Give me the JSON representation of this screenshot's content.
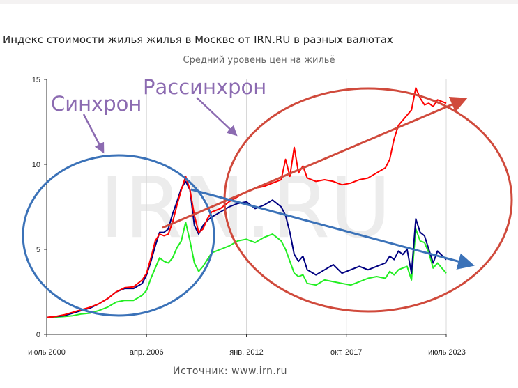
{
  "title": "Индекс стоимости жилья жилья в Москве от IRN.RU в разных валютах",
  "subtitle": "Средний уровень цен на жильё",
  "source": "Источник: www.irn.ru",
  "watermark": "IRN.RU",
  "annotations": {
    "sync": "Синхрон",
    "desync": "Рассинхрон"
  },
  "colors": {
    "red": "#ff0000",
    "navy": "#000080",
    "green": "#22ee22",
    "blue_ann": "#3b72b8",
    "red_ann": "#d04a3c",
    "purple_text": "#8c6bb1"
  },
  "chart_data": {
    "type": "line",
    "title": "Индекс стоимости жилья жилья в Москве от IRN.RU в разных валютах",
    "subtitle": "Средний уровень цен на жильё",
    "xlabel": "",
    "ylabel": "",
    "xlim": [
      2000.5,
      2023.5
    ],
    "ylim": [
      0,
      15
    ],
    "yticks": [
      0,
      5,
      10,
      15
    ],
    "xtick_labels": [
      {
        "x": 2000.5,
        "label": "июль 2000"
      },
      {
        "x": 2006.25,
        "label": "апр. 2006"
      },
      {
        "x": 2012.0,
        "label": "янв. 2012"
      },
      {
        "x": 2017.75,
        "label": "окт. 2017"
      },
      {
        "x": 2023.5,
        "label": "июль 2023"
      }
    ],
    "grid": "vertical",
    "legend": "none",
    "series": [
      {
        "color": "#ff0000",
        "points": [
          [
            2000.5,
            1.0
          ],
          [
            2001.0,
            1.05
          ],
          [
            2001.5,
            1.15
          ],
          [
            2002.0,
            1.3
          ],
          [
            2002.5,
            1.45
          ],
          [
            2003.0,
            1.6
          ],
          [
            2003.5,
            1.8
          ],
          [
            2004.0,
            2.1
          ],
          [
            2004.5,
            2.5
          ],
          [
            2005.0,
            2.75
          ],
          [
            2005.5,
            2.8
          ],
          [
            2006.0,
            3.2
          ],
          [
            2006.25,
            3.6
          ],
          [
            2006.5,
            4.5
          ],
          [
            2006.75,
            5.5
          ],
          [
            2007.0,
            5.9
          ],
          [
            2007.25,
            5.8
          ],
          [
            2007.5,
            5.9
          ],
          [
            2007.75,
            6.6
          ],
          [
            2008.0,
            7.6
          ],
          [
            2008.25,
            8.5
          ],
          [
            2008.5,
            9.3
          ],
          [
            2008.75,
            8.5
          ],
          [
            2009.0,
            7.0
          ],
          [
            2009.25,
            6.0
          ],
          [
            2009.5,
            6.2
          ],
          [
            2009.75,
            6.8
          ],
          [
            2010.0,
            7.2
          ],
          [
            2010.5,
            7.4
          ],
          [
            2011.0,
            7.8
          ],
          [
            2011.5,
            8.1
          ],
          [
            2012.0,
            8.4
          ],
          [
            2012.5,
            8.6
          ],
          [
            2013.0,
            8.7
          ],
          [
            2013.5,
            8.9
          ],
          [
            2014.0,
            9.1
          ],
          [
            2014.25,
            10.3
          ],
          [
            2014.5,
            9.3
          ],
          [
            2014.75,
            11.0
          ],
          [
            2015.0,
            9.5
          ],
          [
            2015.25,
            9.9
          ],
          [
            2015.5,
            9.2
          ],
          [
            2016.0,
            9.0
          ],
          [
            2016.5,
            9.1
          ],
          [
            2017.0,
            9.0
          ],
          [
            2017.5,
            8.8
          ],
          [
            2018.0,
            8.9
          ],
          [
            2018.5,
            9.1
          ],
          [
            2019.0,
            9.2
          ],
          [
            2019.5,
            9.5
          ],
          [
            2020.0,
            9.8
          ],
          [
            2020.25,
            10.3
          ],
          [
            2020.5,
            11.5
          ],
          [
            2020.75,
            12.3
          ],
          [
            2021.0,
            12.6
          ],
          [
            2021.5,
            13.2
          ],
          [
            2021.75,
            14.5
          ],
          [
            2022.0,
            13.9
          ],
          [
            2022.25,
            13.5
          ],
          [
            2022.5,
            13.6
          ],
          [
            2022.75,
            13.4
          ],
          [
            2023.0,
            13.8
          ],
          [
            2023.5,
            13.6
          ]
        ]
      },
      {
        "color": "#000080",
        "points": [
          [
            2000.5,
            1.0
          ],
          [
            2001.0,
            1.05
          ],
          [
            2001.5,
            1.1
          ],
          [
            2002.0,
            1.25
          ],
          [
            2002.5,
            1.4
          ],
          [
            2003.0,
            1.55
          ],
          [
            2003.5,
            1.8
          ],
          [
            2004.0,
            2.1
          ],
          [
            2004.5,
            2.5
          ],
          [
            2005.0,
            2.7
          ],
          [
            2005.5,
            2.7
          ],
          [
            2006.0,
            3.0
          ],
          [
            2006.25,
            3.5
          ],
          [
            2006.5,
            4.3
          ],
          [
            2006.75,
            5.2
          ],
          [
            2007.0,
            6.0
          ],
          [
            2007.25,
            6.0
          ],
          [
            2007.5,
            6.2
          ],
          [
            2007.75,
            7.1
          ],
          [
            2008.0,
            7.8
          ],
          [
            2008.25,
            8.6
          ],
          [
            2008.5,
            9.0
          ],
          [
            2008.75,
            8.5
          ],
          [
            2009.0,
            6.4
          ],
          [
            2009.25,
            5.9
          ],
          [
            2009.5,
            6.4
          ],
          [
            2009.75,
            6.7
          ],
          [
            2010.0,
            6.9
          ],
          [
            2010.5,
            7.2
          ],
          [
            2011.0,
            7.5
          ],
          [
            2011.5,
            7.7
          ],
          [
            2012.0,
            7.8
          ],
          [
            2012.5,
            7.4
          ],
          [
            2013.0,
            7.6
          ],
          [
            2013.5,
            7.9
          ],
          [
            2014.0,
            7.5
          ],
          [
            2014.25,
            7.0
          ],
          [
            2014.5,
            6.0
          ],
          [
            2014.75,
            4.7
          ],
          [
            2015.0,
            4.3
          ],
          [
            2015.25,
            4.6
          ],
          [
            2015.5,
            3.8
          ],
          [
            2016.0,
            3.5
          ],
          [
            2016.5,
            3.8
          ],
          [
            2017.0,
            4.1
          ],
          [
            2017.5,
            3.6
          ],
          [
            2018.0,
            3.8
          ],
          [
            2018.5,
            4.0
          ],
          [
            2019.0,
            3.8
          ],
          [
            2019.5,
            4.0
          ],
          [
            2020.0,
            4.2
          ],
          [
            2020.25,
            4.6
          ],
          [
            2020.5,
            4.4
          ],
          [
            2020.75,
            4.9
          ],
          [
            2021.0,
            4.7
          ],
          [
            2021.25,
            5.0
          ],
          [
            2021.5,
            3.6
          ],
          [
            2021.75,
            6.8
          ],
          [
            2022.0,
            6.0
          ],
          [
            2022.25,
            5.8
          ],
          [
            2022.5,
            5.0
          ],
          [
            2022.75,
            4.2
          ],
          [
            2023.0,
            4.9
          ],
          [
            2023.5,
            4.4
          ]
        ]
      },
      {
        "color": "#22ee22",
        "points": [
          [
            2000.5,
            1.0
          ],
          [
            2001.0,
            1.02
          ],
          [
            2001.5,
            1.05
          ],
          [
            2002.0,
            1.1
          ],
          [
            2002.5,
            1.2
          ],
          [
            2003.0,
            1.25
          ],
          [
            2003.5,
            1.4
          ],
          [
            2004.0,
            1.6
          ],
          [
            2004.5,
            1.9
          ],
          [
            2005.0,
            2.0
          ],
          [
            2005.5,
            2.0
          ],
          [
            2006.0,
            2.3
          ],
          [
            2006.25,
            2.6
          ],
          [
            2006.5,
            3.3
          ],
          [
            2006.75,
            3.9
          ],
          [
            2007.0,
            4.5
          ],
          [
            2007.25,
            4.3
          ],
          [
            2007.5,
            4.2
          ],
          [
            2007.75,
            4.5
          ],
          [
            2008.0,
            5.1
          ],
          [
            2008.25,
            5.5
          ],
          [
            2008.5,
            6.6
          ],
          [
            2008.75,
            5.5
          ],
          [
            2009.0,
            4.2
          ],
          [
            2009.25,
            3.7
          ],
          [
            2009.5,
            4.0
          ],
          [
            2009.75,
            4.4
          ],
          [
            2010.0,
            4.8
          ],
          [
            2010.5,
            5.0
          ],
          [
            2011.0,
            5.2
          ],
          [
            2011.5,
            5.5
          ],
          [
            2012.0,
            5.6
          ],
          [
            2012.5,
            5.4
          ],
          [
            2013.0,
            5.7
          ],
          [
            2013.5,
            5.9
          ],
          [
            2014.0,
            5.5
          ],
          [
            2014.25,
            5.0
          ],
          [
            2014.5,
            4.3
          ],
          [
            2014.75,
            3.6
          ],
          [
            2015.0,
            3.4
          ],
          [
            2015.25,
            3.5
          ],
          [
            2015.5,
            3.0
          ],
          [
            2016.0,
            2.9
          ],
          [
            2016.5,
            3.2
          ],
          [
            2017.0,
            3.1
          ],
          [
            2017.5,
            3.0
          ],
          [
            2018.0,
            2.9
          ],
          [
            2018.5,
            3.1
          ],
          [
            2019.0,
            3.3
          ],
          [
            2019.5,
            3.4
          ],
          [
            2020.0,
            3.3
          ],
          [
            2020.25,
            3.7
          ],
          [
            2020.5,
            3.5
          ],
          [
            2020.75,
            3.8
          ],
          [
            2021.0,
            3.9
          ],
          [
            2021.25,
            4.0
          ],
          [
            2021.5,
            3.2
          ],
          [
            2021.75,
            6.2
          ],
          [
            2022.0,
            5.5
          ],
          [
            2022.25,
            5.4
          ],
          [
            2022.5,
            4.8
          ],
          [
            2022.75,
            3.9
          ],
          [
            2023.0,
            4.2
          ],
          [
            2023.5,
            3.6
          ]
        ]
      }
    ]
  }
}
